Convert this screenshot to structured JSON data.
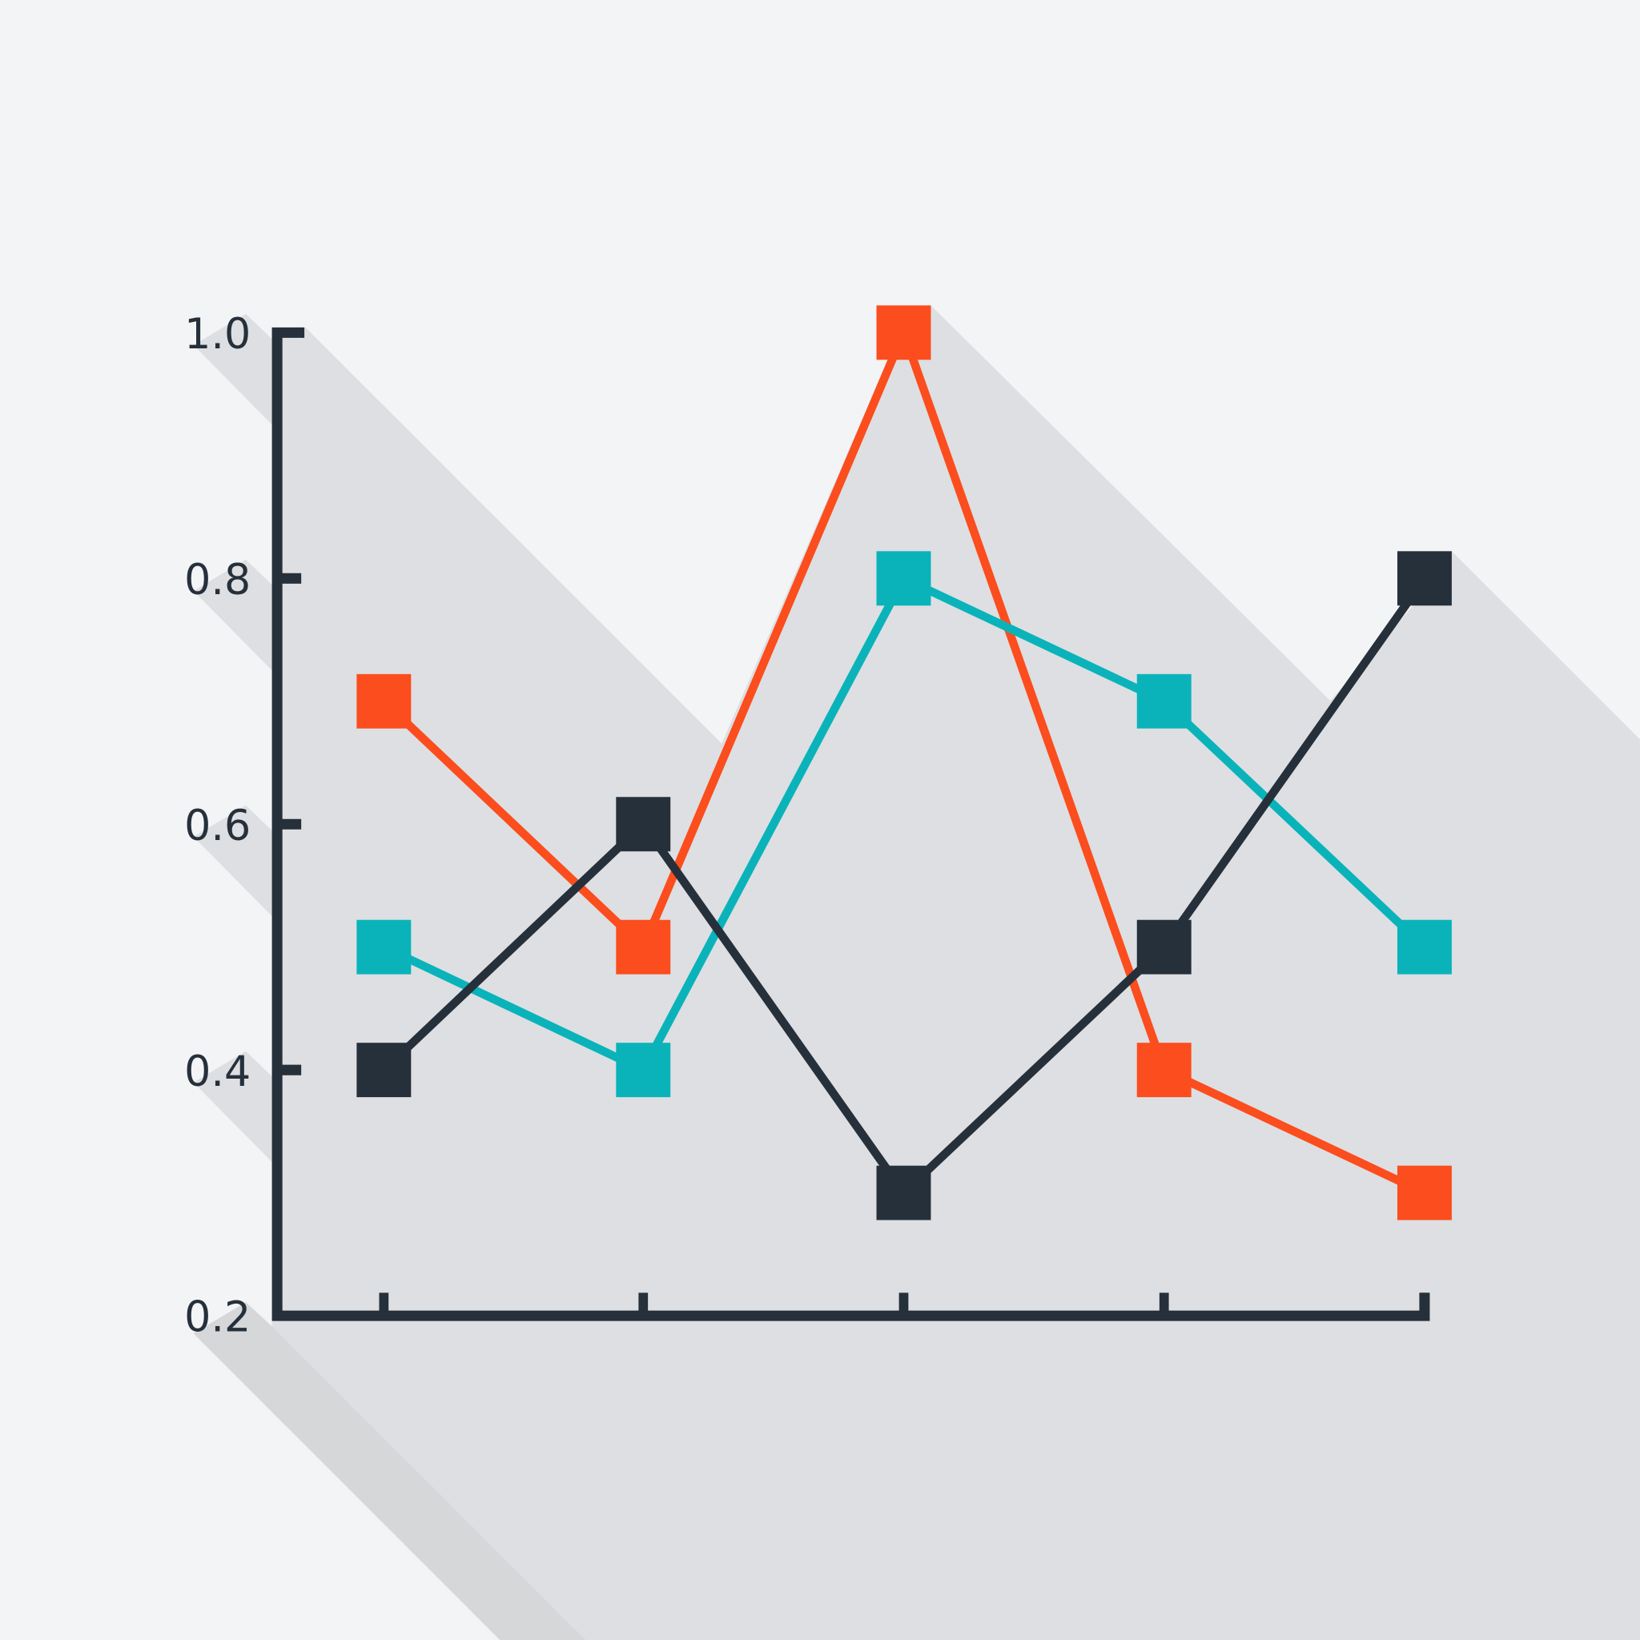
{
  "chart_data": {
    "type": "line",
    "title": "",
    "xlabel": "",
    "ylabel": "",
    "categories": [
      "",
      "",
      "",
      "",
      ""
    ],
    "ylim": [
      0.2,
      1.0
    ],
    "yticks": [
      "0.2",
      "0.4",
      "0.6",
      "0.8",
      "1.0"
    ],
    "grid": false,
    "legend": "none",
    "marker": "square",
    "style": "flat long-shadow",
    "series": [
      {
        "color": "#FB4D1D",
        "values": [
          0.7,
          0.5,
          1.0,
          0.4,
          0.3
        ]
      },
      {
        "color": "#0AB3BA",
        "values": [
          0.5,
          0.4,
          0.8,
          0.7,
          0.5
        ]
      },
      {
        "color": "#26303B",
        "values": [
          0.4,
          0.6,
          0.3,
          0.5,
          0.8
        ]
      }
    ]
  },
  "colors": {
    "background": "#F3F4F6",
    "shadow": "#DDDFE2",
    "axis": "#26303B"
  }
}
